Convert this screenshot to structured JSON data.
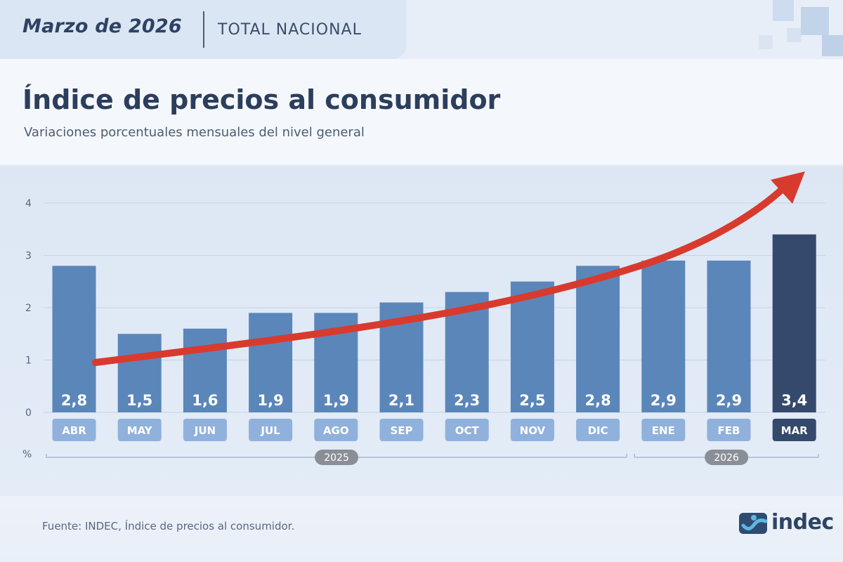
{
  "header": {
    "period": "Marzo de 2026",
    "scope": "TOTAL NACIONAL"
  },
  "title": "Índice de precios al consumidor",
  "subtitle": "Variaciones porcentuales mensuales del nivel general",
  "source": "Fuente: INDEC, Índice de precios al consumidor.",
  "logo": {
    "text": "indec",
    "icon": "indec-logo-icon"
  },
  "colors": {
    "bar": "#5b86ba",
    "bar_highlight": "#34496b",
    "label_box": "#8fb1dc",
    "label_box_highlight": "#34496b",
    "trend_arrow": "#d93a2e",
    "year_badge": "#8a8f97"
  },
  "chart_data": {
    "type": "bar",
    "categories": [
      "ABR",
      "MAY",
      "JUN",
      "JUL",
      "AGO",
      "SEP",
      "OCT",
      "NOV",
      "DIC",
      "ENE",
      "FEB",
      "MAR"
    ],
    "values": [
      2.8,
      1.5,
      1.6,
      1.9,
      1.9,
      2.1,
      2.3,
      2.5,
      2.8,
      2.9,
      2.9,
      3.4
    ],
    "value_labels": [
      "2,8",
      "1,5",
      "1,6",
      "1,9",
      "1,9",
      "2,1",
      "2,3",
      "2,5",
      "2,8",
      "2,9",
      "2,9",
      "3,4"
    ],
    "highlight_category": "MAR",
    "y_ticks": [
      "0",
      "1",
      "2",
      "3",
      "4"
    ],
    "ylim": [
      0,
      4
    ],
    "ylabel": "%",
    "grid": true,
    "year_groups": [
      {
        "label": "2025",
        "from": "ABR",
        "to": "DIC"
      },
      {
        "label": "2026",
        "from": "ENE",
        "to": "MAR"
      }
    ],
    "trend_arrow": true
  }
}
